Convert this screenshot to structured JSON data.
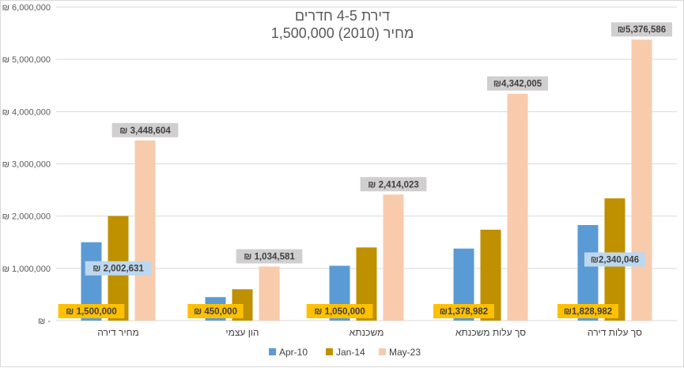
{
  "chart_data": {
    "type": "bar",
    "title": "דירת 4-5 חדרים",
    "subtitle": "מחיר (2010) 1,500,000",
    "categories": [
      "מחיר דירה",
      "הון עצמי",
      "משכנתא",
      "סך עלות משכנתא",
      "סך עלות דירה"
    ],
    "series": [
      {
        "name": "Apr-10",
        "color": "#5b9bd5",
        "values": [
          1500000,
          450000,
          1050000,
          1378982,
          1828982
        ]
      },
      {
        "name": "Jan-14",
        "color": "#bf9000",
        "values": [
          2002631,
          600000,
          1400000,
          1740000,
          2340046
        ]
      },
      {
        "name": "May-23",
        "color": "#f8cbad",
        "values": [
          3448604,
          1034581,
          2414023,
          4342005,
          5376586
        ]
      }
    ],
    "data_labels": [
      {
        "series": 0,
        "category": 0,
        "text": "₪ 1,500,000"
      },
      {
        "series": 0,
        "category": 1,
        "text": "₪ 450,000"
      },
      {
        "series": 0,
        "category": 2,
        "text": "₪ 1,050,000"
      },
      {
        "series": 0,
        "category": 3,
        "text": "₪1,378,982"
      },
      {
        "series": 0,
        "category": 4,
        "text": "₪1,828,982"
      },
      {
        "series": 1,
        "category": 0,
        "text": "₪ 2,002,631"
      },
      {
        "series": 1,
        "category": 4,
        "text": "₪2,340,046"
      },
      {
        "series": 2,
        "category": 0,
        "text": "₪ 3,448,604"
      },
      {
        "series": 2,
        "category": 1,
        "text": "₪ 1,034,581"
      },
      {
        "series": 2,
        "category": 2,
        "text": "₪ 2,414,023"
      },
      {
        "series": 2,
        "category": 3,
        "text": "₪4,342,005"
      },
      {
        "series": 2,
        "category": 4,
        "text": "₪5,376,586"
      }
    ],
    "ylim": [
      0,
      6000000
    ],
    "yticks": [
      0,
      1000000,
      2000000,
      3000000,
      4000000,
      5000000,
      6000000
    ],
    "ytick_labels": [
      "₪ -",
      "₪ 1,000,000",
      "₪ 2,000,000",
      "₪ 3,000,000",
      "₪ 4,000,000",
      "₪ 5,000,000",
      "₪ 6,000,000"
    ],
    "grid": true,
    "legend_position": "bottom",
    "label_fill_colors": {
      "0": "#ffc000",
      "1": "#bdd7ee",
      "2": "#d0cece"
    }
  }
}
